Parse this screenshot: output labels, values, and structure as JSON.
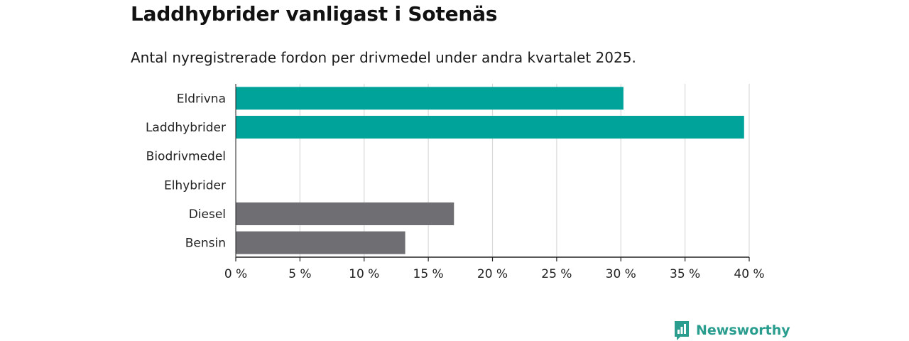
{
  "header": {
    "title": "Laddhybrider vanligast i Sotenäs",
    "subtitle": "Antal nyregistrerade fordon per drivmedel under andra kvartalet 2025."
  },
  "branding": {
    "name": "Newsworthy",
    "icon": "newsworthy-logo-icon",
    "color": "#2a9d8f"
  },
  "chart_data": {
    "type": "bar",
    "orientation": "horizontal",
    "categories": [
      "Eldrivna",
      "Laddhybrider",
      "Biodrivmedel",
      "Elhybrider",
      "Diesel",
      "Bensin"
    ],
    "values": [
      30.2,
      39.6,
      0,
      0,
      17.0,
      13.2
    ],
    "colors": [
      "#00a39a",
      "#00a39a",
      "#00a39a",
      "#00a39a",
      "#6e6e73",
      "#6e6e73"
    ],
    "xlim": [
      0,
      40
    ],
    "xticks": [
      0,
      5,
      10,
      15,
      20,
      25,
      30,
      35,
      40
    ],
    "tick_suffix": " %",
    "grid": true,
    "xlabel": "",
    "ylabel": ""
  }
}
